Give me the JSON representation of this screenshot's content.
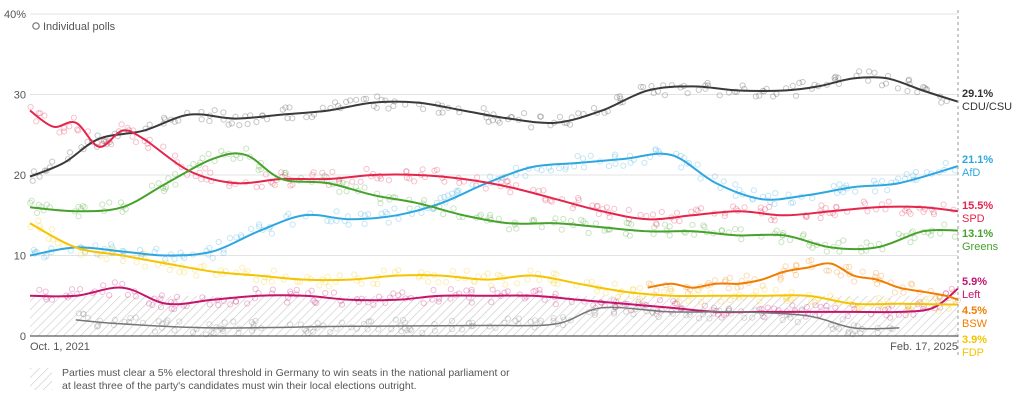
{
  "chart_data": {
    "type": "line",
    "title": "",
    "xlabel": "",
    "ylabel": "",
    "ylim": [
      0,
      40
    ],
    "y_ticks": [
      0,
      10,
      20,
      30
    ],
    "y_top_label": "40%",
    "x_start_label": "Oct. 1, 2021",
    "x_end_label": "Feb. 17, 2025",
    "x_range": [
      "2021-10-01",
      "2025-02-17"
    ],
    "grid": true,
    "legend": {
      "marker": "open-circle",
      "label": "Individual polls",
      "placement": "top-left"
    },
    "threshold": {
      "value": 5,
      "note": "Parties must clear a 5% electoral threshold in Germany to win seats in the national parliament or at least three of the party's candidates must win their local elections outright."
    },
    "series": [
      {
        "name": "CDU/CSU",
        "value_label": "29.1%",
        "color": "#3a3a3a",
        "x": [
          "2021-10-01",
          "2021-11-15",
          "2022-01-01",
          "2022-03-01",
          "2022-05-01",
          "2022-07-01",
          "2022-09-01",
          "2022-11-01",
          "2023-01-01",
          "2023-03-01",
          "2023-05-01",
          "2023-07-01",
          "2023-09-01",
          "2023-11-01",
          "2024-01-01",
          "2024-03-01",
          "2024-05-01",
          "2024-07-01",
          "2024-08-15",
          "2024-10-01",
          "2024-11-15",
          "2025-01-01",
          "2025-02-17"
        ],
        "values": [
          19.8,
          21.5,
          24.5,
          25.5,
          27.5,
          27.0,
          27.5,
          28.0,
          29.0,
          29.0,
          28.0,
          27.0,
          26.5,
          28.0,
          30.5,
          31.0,
          30.5,
          30.5,
          31.0,
          32.0,
          32.0,
          30.5,
          29.1
        ]
      },
      {
        "name": "AfD",
        "value_label": "21.1%",
        "color": "#2ea7e0",
        "x": [
          "2021-10-01",
          "2021-12-01",
          "2022-02-01",
          "2022-04-01",
          "2022-06-01",
          "2022-08-01",
          "2022-10-01",
          "2022-12-01",
          "2023-02-01",
          "2023-04-01",
          "2023-06-01",
          "2023-08-01",
          "2023-10-01",
          "2023-12-01",
          "2024-02-01",
          "2024-04-01",
          "2024-06-01",
          "2024-08-01",
          "2024-10-01",
          "2024-12-01",
          "2025-02-17"
        ],
        "values": [
          10.0,
          11.0,
          10.5,
          10.0,
          10.5,
          13.0,
          15.0,
          14.5,
          15.0,
          16.5,
          19.0,
          21.0,
          21.5,
          22.0,
          22.5,
          19.0,
          17.0,
          17.5,
          18.5,
          19.0,
          21.1
        ]
      },
      {
        "name": "SPD",
        "value_label": "15.5%",
        "color": "#e4244b",
        "x": [
          "2021-10-01",
          "2021-11-01",
          "2021-12-01",
          "2022-01-01",
          "2022-02-01",
          "2022-03-01",
          "2022-05-01",
          "2022-07-01",
          "2022-09-01",
          "2022-11-01",
          "2023-01-01",
          "2023-03-01",
          "2023-05-01",
          "2023-07-01",
          "2023-09-01",
          "2023-11-01",
          "2024-01-01",
          "2024-03-01",
          "2024-05-01",
          "2024-07-01",
          "2024-09-01",
          "2024-11-01",
          "2025-01-01",
          "2025-02-17"
        ],
        "values": [
          28.0,
          26.0,
          26.5,
          23.5,
          25.5,
          24.5,
          20.5,
          19.0,
          19.5,
          19.5,
          20.0,
          20.0,
          19.5,
          18.5,
          17.0,
          15.5,
          14.5,
          15.0,
          15.5,
          15.0,
          15.5,
          16.0,
          16.0,
          15.5
        ]
      },
      {
        "name": "Greens",
        "value_label": "13.1%",
        "color": "#46a22c",
        "x": [
          "2021-10-01",
          "2021-12-01",
          "2022-02-01",
          "2022-04-01",
          "2022-06-01",
          "2022-07-15",
          "2022-09-01",
          "2022-11-01",
          "2023-01-01",
          "2023-03-01",
          "2023-05-01",
          "2023-07-01",
          "2023-09-01",
          "2023-11-01",
          "2024-01-01",
          "2024-03-01",
          "2024-05-01",
          "2024-07-01",
          "2024-09-01",
          "2024-11-01",
          "2025-01-01",
          "2025-02-17"
        ],
        "values": [
          16.0,
          15.5,
          16.0,
          19.0,
          22.0,
          22.5,
          19.5,
          19.0,
          17.5,
          16.5,
          15.0,
          14.0,
          14.0,
          13.5,
          13.0,
          13.0,
          12.5,
          12.5,
          11.0,
          11.0,
          13.0,
          13.1
        ]
      },
      {
        "name": "Left",
        "value_label": "5.9%",
        "color": "#c4146e",
        "x": [
          "2021-10-01",
          "2021-12-01",
          "2022-02-01",
          "2022-04-01",
          "2022-06-01",
          "2022-08-01",
          "2022-10-01",
          "2022-12-01",
          "2023-02-01",
          "2023-04-01",
          "2023-06-01",
          "2023-08-01",
          "2023-10-01",
          "2023-12-01",
          "2024-02-01",
          "2024-04-01",
          "2024-06-01",
          "2024-08-01",
          "2024-10-01",
          "2024-12-01",
          "2025-01-15",
          "2025-02-17"
        ],
        "values": [
          5.0,
          5.0,
          6.0,
          4.0,
          4.5,
          5.0,
          5.0,
          4.5,
          4.5,
          5.0,
          5.0,
          5.0,
          4.5,
          4.0,
          3.5,
          3.0,
          3.0,
          3.0,
          3.0,
          3.0,
          3.5,
          5.9
        ]
      },
      {
        "name": "BSW",
        "value_label": "4.5%",
        "color": "#f07d00",
        "x": [
          "2024-01-01",
          "2024-02-01",
          "2024-03-01",
          "2024-04-01",
          "2024-05-01",
          "2024-06-01",
          "2024-07-01",
          "2024-08-01",
          "2024-09-01",
          "2024-10-01",
          "2024-11-01",
          "2024-12-01",
          "2025-01-01",
          "2025-02-01",
          "2025-02-17"
        ],
        "values": [
          6.0,
          6.5,
          6.0,
          6.5,
          6.5,
          7.0,
          8.0,
          8.5,
          9.0,
          7.5,
          7.0,
          6.0,
          5.5,
          5.0,
          4.5
        ]
      },
      {
        "name": "FDP",
        "value_label": "3.9%",
        "color": "#f5c400",
        "x": [
          "2021-10-01",
          "2021-12-01",
          "2022-02-01",
          "2022-04-01",
          "2022-06-01",
          "2022-08-01",
          "2022-10-01",
          "2022-12-01",
          "2023-02-01",
          "2023-04-01",
          "2023-06-01",
          "2023-08-01",
          "2023-10-01",
          "2023-12-01",
          "2024-02-01",
          "2024-04-01",
          "2024-06-01",
          "2024-08-01",
          "2024-10-01",
          "2024-12-01",
          "2025-02-17"
        ],
        "values": [
          14.0,
          11.0,
          10.0,
          9.0,
          8.0,
          7.5,
          7.0,
          7.0,
          7.5,
          7.5,
          7.0,
          7.5,
          6.5,
          5.5,
          5.0,
          5.0,
          5.0,
          5.0,
          4.0,
          4.0,
          3.9
        ]
      },
      {
        "name": "",
        "value_label": "",
        "color": "#777777",
        "x": [
          "2021-12-01",
          "2022-02-01",
          "2022-06-01",
          "2022-12-01",
          "2023-06-01",
          "2023-09-01",
          "2023-11-01",
          "2024-02-01",
          "2024-05-01",
          "2024-08-01",
          "2024-10-01",
          "2024-12-01"
        ],
        "values": [
          2.0,
          1.5,
          1.0,
          1.2,
          1.3,
          1.5,
          3.5,
          3.0,
          3.0,
          2.5,
          1.0,
          1.0
        ]
      }
    ]
  }
}
